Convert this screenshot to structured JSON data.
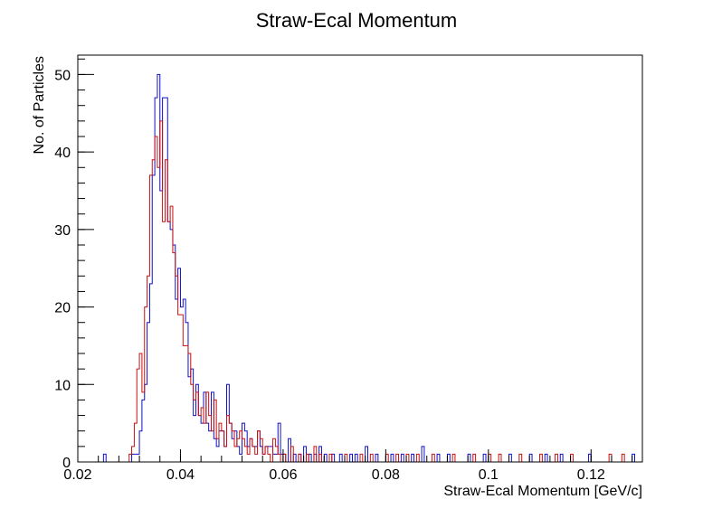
{
  "chart_data": {
    "type": "histogram",
    "title": "Straw-Ecal Momentum",
    "xlabel": "Straw-Ecal Momentum [GeV/c]",
    "ylabel": "No. of Particles",
    "xlim": [
      0.02,
      0.13
    ],
    "ylim": [
      0,
      52.5
    ],
    "bin_width": 0.0005,
    "x_ticks": [
      {
        "value": 0.02,
        "label": "0.02"
      },
      {
        "value": 0.04,
        "label": "0.04"
      },
      {
        "value": 0.06,
        "label": "0.06"
      },
      {
        "value": 0.08,
        "label": "0.08"
      },
      {
        "value": 0.1,
        "label": "0.1"
      },
      {
        "value": 0.12,
        "label": "0.12"
      }
    ],
    "y_ticks": [
      {
        "value": 0,
        "label": "0"
      },
      {
        "value": 10,
        "label": "10"
      },
      {
        "value": 20,
        "label": "20"
      },
      {
        "value": 30,
        "label": "30"
      },
      {
        "value": 40,
        "label": "40"
      },
      {
        "value": 50,
        "label": "50"
      }
    ],
    "grid": false,
    "series": [
      {
        "color": "#1010c8",
        "bins": [
          [
            0.025,
            1
          ],
          [
            0.0305,
            1
          ],
          [
            0.031,
            1
          ],
          [
            0.0315,
            1
          ],
          [
            0.032,
            4
          ],
          [
            0.0325,
            8
          ],
          [
            0.033,
            10
          ],
          [
            0.0335,
            18
          ],
          [
            0.034,
            23
          ],
          [
            0.0345,
            37
          ],
          [
            0.035,
            47
          ],
          [
            0.0355,
            50
          ],
          [
            0.036,
            35
          ],
          [
            0.0365,
            47
          ],
          [
            0.037,
            47
          ],
          [
            0.0375,
            31
          ],
          [
            0.038,
            30
          ],
          [
            0.0385,
            28
          ],
          [
            0.039,
            21
          ],
          [
            0.0395,
            25
          ],
          [
            0.04,
            20
          ],
          [
            0.0405,
            21
          ],
          [
            0.041,
            18
          ],
          [
            0.0415,
            11
          ],
          [
            0.042,
            12
          ],
          [
            0.0425,
            6
          ],
          [
            0.043,
            10
          ],
          [
            0.0435,
            6
          ],
          [
            0.044,
            5
          ],
          [
            0.0445,
            9
          ],
          [
            0.045,
            5
          ],
          [
            0.0455,
            4
          ],
          [
            0.046,
            9
          ],
          [
            0.0465,
            3
          ],
          [
            0.047,
            2
          ],
          [
            0.0475,
            4
          ],
          [
            0.048,
            4
          ],
          [
            0.0485,
            2
          ],
          [
            0.049,
            10
          ],
          [
            0.0495,
            5
          ],
          [
            0.05,
            3
          ],
          [
            0.0505,
            4
          ],
          [
            0.051,
            2
          ],
          [
            0.0515,
            1
          ],
          [
            0.052,
            5
          ],
          [
            0.0525,
            4
          ],
          [
            0.053,
            2
          ],
          [
            0.0535,
            3
          ],
          [
            0.054,
            2
          ],
          [
            0.0545,
            2
          ],
          [
            0.055,
            4
          ],
          [
            0.0555,
            2
          ],
          [
            0.056,
            1
          ],
          [
            0.0565,
            2
          ],
          [
            0.057,
            2
          ],
          [
            0.0575,
            2
          ],
          [
            0.058,
            1
          ],
          [
            0.0585,
            1
          ],
          [
            0.059,
            5
          ],
          [
            0.0595,
            1
          ],
          [
            0.06,
            1
          ],
          [
            0.061,
            3
          ],
          [
            0.062,
            1
          ],
          [
            0.063,
            1
          ],
          [
            0.064,
            2
          ],
          [
            0.065,
            1
          ],
          [
            0.066,
            1
          ],
          [
            0.067,
            2
          ],
          [
            0.068,
            1
          ],
          [
            0.0695,
            1
          ],
          [
            0.071,
            1
          ],
          [
            0.073,
            1
          ],
          [
            0.074,
            1
          ],
          [
            0.076,
            2
          ],
          [
            0.078,
            1
          ],
          [
            0.081,
            1
          ],
          [
            0.083,
            1
          ],
          [
            0.085,
            1
          ],
          [
            0.087,
            2
          ],
          [
            0.09,
            1
          ],
          [
            0.092,
            1
          ],
          [
            0.096,
            1
          ],
          [
            0.099,
            1
          ],
          [
            0.104,
            1
          ],
          [
            0.108,
            1
          ],
          [
            0.111,
            1
          ],
          [
            0.114,
            1
          ],
          [
            0.1195,
            1
          ],
          [
            0.128,
            1
          ]
        ]
      },
      {
        "color": "#c81010",
        "bins": [
          [
            0.03,
            1
          ],
          [
            0.0305,
            2
          ],
          [
            0.031,
            5
          ],
          [
            0.0315,
            12
          ],
          [
            0.032,
            14
          ],
          [
            0.0325,
            9
          ],
          [
            0.033,
            20
          ],
          [
            0.0335,
            24
          ],
          [
            0.034,
            37
          ],
          [
            0.0345,
            39
          ],
          [
            0.035,
            42
          ],
          [
            0.0355,
            38
          ],
          [
            0.036,
            44
          ],
          [
            0.0365,
            31
          ],
          [
            0.037,
            39
          ],
          [
            0.0375,
            31
          ],
          [
            0.038,
            33
          ],
          [
            0.0385,
            27
          ],
          [
            0.039,
            24
          ],
          [
            0.0395,
            19
          ],
          [
            0.04,
            19
          ],
          [
            0.0405,
            15
          ],
          [
            0.041,
            15
          ],
          [
            0.0415,
            14
          ],
          [
            0.042,
            10
          ],
          [
            0.0425,
            8
          ],
          [
            0.043,
            9
          ],
          [
            0.0435,
            6
          ],
          [
            0.044,
            7
          ],
          [
            0.0445,
            5
          ],
          [
            0.045,
            9
          ],
          [
            0.0455,
            6
          ],
          [
            0.046,
            4
          ],
          [
            0.0465,
            8
          ],
          [
            0.047,
            3
          ],
          [
            0.0475,
            5
          ],
          [
            0.048,
            4
          ],
          [
            0.0485,
            2
          ],
          [
            0.049,
            6
          ],
          [
            0.0495,
            5
          ],
          [
            0.05,
            4
          ],
          [
            0.0505,
            2
          ],
          [
            0.051,
            3
          ],
          [
            0.0515,
            4
          ],
          [
            0.052,
            3
          ],
          [
            0.0525,
            2
          ],
          [
            0.053,
            1
          ],
          [
            0.0535,
            3
          ],
          [
            0.054,
            2
          ],
          [
            0.0545,
            1
          ],
          [
            0.055,
            4
          ],
          [
            0.0555,
            3
          ],
          [
            0.056,
            1
          ],
          [
            0.0565,
            2
          ],
          [
            0.057,
            1
          ],
          [
            0.058,
            3
          ],
          [
            0.0585,
            2
          ],
          [
            0.059,
            1
          ],
          [
            0.06,
            1
          ],
          [
            0.0615,
            2
          ],
          [
            0.063,
            1
          ],
          [
            0.0645,
            1
          ],
          [
            0.066,
            2
          ],
          [
            0.067,
            1
          ],
          [
            0.069,
            1
          ],
          [
            0.072,
            1
          ],
          [
            0.075,
            1
          ],
          [
            0.077,
            1
          ],
          [
            0.08,
            1
          ],
          [
            0.082,
            1
          ],
          [
            0.084,
            1
          ],
          [
            0.086,
            1
          ],
          [
            0.089,
            1
          ],
          [
            0.093,
            1
          ],
          [
            0.097,
            1
          ],
          [
            0.1,
            1
          ],
          [
            0.102,
            1
          ],
          [
            0.106,
            1
          ],
          [
            0.11,
            1
          ],
          [
            0.113,
            1
          ],
          [
            0.116,
            1
          ],
          [
            0.1235,
            1
          ],
          [
            0.126,
            1
          ]
        ]
      }
    ]
  }
}
